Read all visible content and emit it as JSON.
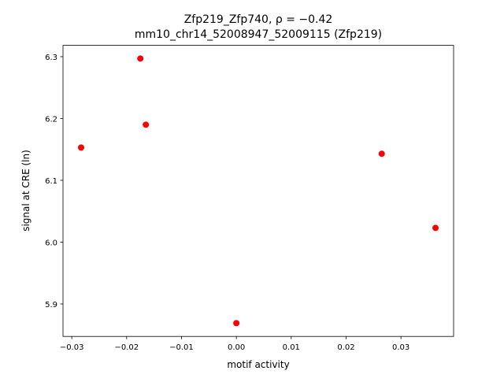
{
  "chart_data": {
    "type": "scatter",
    "title": "Zfp219_Zfp740, ρ = −0.42",
    "subtitle": "mm10_chr14_52008947_52009115 (Zfp219)",
    "x_label": "motif activity",
    "y_label": "signal at CRE (ln)",
    "color": "#ff0000",
    "x": [
      -0.0283,
      -0.0175,
      -0.0165,
      0.0,
      0.0265,
      0.0363
    ],
    "values": [
      6.153,
      6.297,
      6.19,
      5.869,
      6.143,
      6.023
    ],
    "xlim": [
      -0.0316,
      0.0396
    ],
    "ylim": [
      5.8475,
      6.3183
    ],
    "xticks": [
      {
        "value": -0.03,
        "label": "−0.03"
      },
      {
        "value": -0.02,
        "label": "−0.02"
      },
      {
        "value": -0.01,
        "label": "−0.01"
      },
      {
        "value": 0,
        "label": "0.00"
      },
      {
        "value": 0.01,
        "label": "0.01"
      },
      {
        "value": 0.02,
        "label": "0.02"
      },
      {
        "value": 0.03,
        "label": "0.03"
      }
    ],
    "yticks": [
      5.9,
      {
        "value": 6.0,
        "label": "6.0"
      },
      6.1,
      6.2,
      6.3
    ],
    "grid": false
  }
}
